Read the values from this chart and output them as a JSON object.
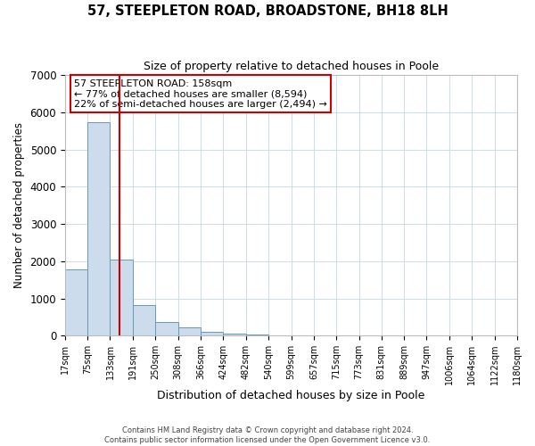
{
  "title": "57, STEEPLETON ROAD, BROADSTONE, BH18 8LH",
  "subtitle": "Size of property relative to detached houses in Poole",
  "xlabel": "Distribution of detached houses by size in Poole",
  "ylabel": "Number of detached properties",
  "bar_values": [
    1780,
    5750,
    2050,
    820,
    370,
    230,
    100,
    50,
    30,
    10,
    5,
    0,
    0,
    0,
    0,
    0,
    0,
    0,
    0,
    0
  ],
  "bin_edges": [
    17,
    75,
    133,
    191,
    250,
    308,
    366,
    424,
    482,
    540,
    599,
    657,
    715,
    773,
    831,
    889,
    947,
    1006,
    1064,
    1122,
    1180
  ],
  "tick_labels": [
    "17sqm",
    "75sqm",
    "133sqm",
    "191sqm",
    "250sqm",
    "308sqm",
    "366sqm",
    "424sqm",
    "482sqm",
    "540sqm",
    "599sqm",
    "657sqm",
    "715sqm",
    "773sqm",
    "831sqm",
    "889sqm",
    "947sqm",
    "1006sqm",
    "1064sqm",
    "1122sqm",
    "1180sqm"
  ],
  "bar_color": "#ccdcec",
  "bar_edge_color": "#6699bb",
  "property_size": 158,
  "red_line_color": "#cc0000",
  "annotation_line1": "57 STEEPLETON ROAD: 158sqm",
  "annotation_line2": "← 77% of detached houses are smaller (8,594)",
  "annotation_line3": "22% of semi-detached houses are larger (2,494) →",
  "annotation_box_color": "#ffffff",
  "annotation_box_edge_color": "#cc0000",
  "ylim": [
    0,
    7000
  ],
  "yticks": [
    0,
    1000,
    2000,
    3000,
    4000,
    5000,
    6000,
    7000
  ],
  "footer_line1": "Contains HM Land Registry data © Crown copyright and database right 2024.",
  "footer_line2": "Contains public sector information licensed under the Open Government Licence v3.0.",
  "background_color": "#ffffff",
  "grid_color": "#ccdde8"
}
